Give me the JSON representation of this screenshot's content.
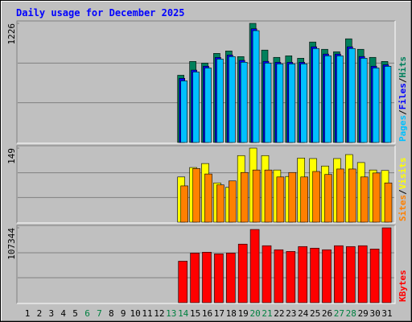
{
  "chart_data": {
    "type": "bar",
    "title": "Daily usage for December 2025",
    "legend_separator": "/",
    "categories": [
      "1",
      "2",
      "3",
      "4",
      "5",
      "6",
      "7",
      "8",
      "9",
      "10",
      "11",
      "12",
      "13",
      "14",
      "15",
      "16",
      "17",
      "18",
      "19",
      "20",
      "21",
      "22",
      "23",
      "24",
      "25",
      "26",
      "27",
      "28",
      "29",
      "30",
      "31"
    ],
    "category_colors": [
      "#000000",
      "#000000",
      "#000000",
      "#000000",
      "#000000",
      "#008040",
      "#008040",
      "#000000",
      "#000000",
      "#000000",
      "#000000",
      "#000000",
      "#008040",
      "#008040",
      "#000000",
      "#000000",
      "#000000",
      "#000000",
      "#000000",
      "#008040",
      "#008040",
      "#000000",
      "#000000",
      "#000000",
      "#000000",
      "#000000",
      "#008040",
      "#008040",
      "#000000",
      "#000000",
      "#000000"
    ],
    "panels": [
      {
        "ylim": [
          0,
          1226
        ],
        "yticks": [
          1226
        ],
        "series": [
          {
            "name": "Hits",
            "color": "#00805C",
            "values": [
              0,
              0,
              0,
              0,
              0,
              0,
              0,
              0,
              0,
              0,
              0,
              0,
              0,
              692,
              834,
              817,
              917,
              942,
              884,
              1226,
              951,
              876,
              892,
              867,
              1034,
              959,
              934,
              1067,
              959,
              876,
              834
            ]
          },
          {
            "name": "Files",
            "color": "#0000FF",
            "values": [
              0,
              0,
              0,
              0,
              0,
              0,
              0,
              0,
              0,
              0,
              0,
              0,
              0,
              660,
              745,
              785,
              875,
              900,
              845,
              1170,
              835,
              825,
              825,
              825,
              985,
              910,
              910,
              985,
              885,
              785,
              800
            ]
          },
          {
            "name": "Pages",
            "color": "#00C0FF",
            "values": [
              0,
              0,
              0,
              0,
              0,
              0,
              0,
              0,
              0,
              0,
              0,
              0,
              0,
              634,
              726,
              767,
              859,
              884,
              826,
              1151,
              817,
              809,
              809,
              809,
              967,
              892,
              892,
              967,
              867,
              767,
              784
            ]
          }
        ]
      },
      {
        "ylim": [
          0,
          149
        ],
        "yticks": [
          149
        ],
        "series": [
          {
            "name": "Visits",
            "color": "#FFFF00",
            "values": [
              0,
              0,
              0,
              0,
              0,
              0,
              0,
              0,
              0,
              0,
              0,
              0,
              0,
              91,
              110,
              118,
              79,
              70,
              134,
              149,
              134,
              105,
              92,
              129,
              128,
              113,
              128,
              136,
              120,
              105,
              104
            ]
          },
          {
            "name": "Sites",
            "color": "#FF8000",
            "values": [
              0,
              0,
              0,
              0,
              0,
              0,
              0,
              0,
              0,
              0,
              0,
              0,
              0,
              73,
              108,
              97,
              75,
              83,
              100,
              105,
              105,
              91,
              100,
              91,
              102,
              96,
              107,
              107,
              91,
              99,
              79
            ]
          }
        ]
      },
      {
        "ylim": [
          0,
          107344
        ],
        "yticks": [
          107344
        ],
        "series": [
          {
            "name": "KBytes",
            "color": "#FF0000",
            "values": [
              0,
              0,
              0,
              0,
              0,
              0,
              0,
              0,
              0,
              0,
              0,
              0,
              0,
              59500,
              71200,
              72400,
              70000,
              71200,
              84000,
              105000,
              81700,
              75900,
              73500,
              80500,
              78200,
              75900,
              81700,
              80500,
              81700,
              77000,
              107344
            ]
          }
        ]
      }
    ]
  }
}
